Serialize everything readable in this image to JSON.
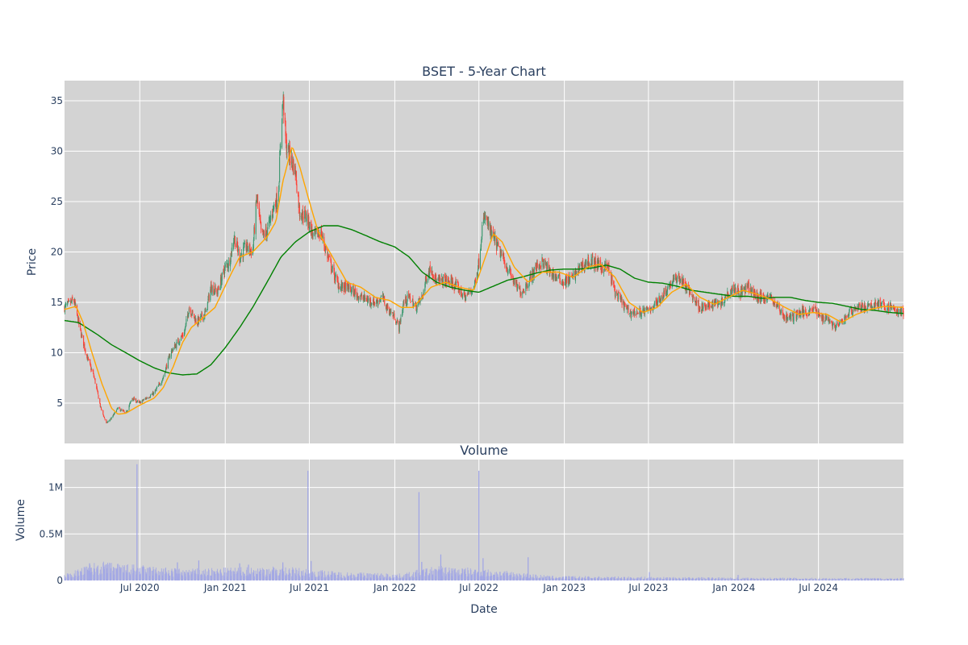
{
  "chart_data": [
    {
      "type": "candlestick",
      "title": "BSET - 5-Year Chart",
      "ylabel": "Price",
      "ylim": [
        1,
        37
      ],
      "y_ticks": [
        5,
        10,
        15,
        20,
        25,
        30,
        35
      ],
      "x_range": [
        "2020-01-21",
        "2024-12-31"
      ],
      "x_tick_dates": [
        "2020-07-01",
        "2021-01-01",
        "2021-07-01",
        "2022-01-01",
        "2022-07-01",
        "2023-01-01",
        "2023-07-01",
        "2024-01-01",
        "2024-07-01"
      ],
      "colors": {
        "up": "#3d9970",
        "down": "#ff4136",
        "ma_short": "#ffa500",
        "ma_long": "#008000",
        "panel_bg": "#d3d3d3",
        "grid": "#ffffff"
      },
      "close_anchors": [
        [
          "2020-01-21",
          14.5
        ],
        [
          "2020-02-10",
          15.2
        ],
        [
          "2020-02-25",
          12.0
        ],
        [
          "2020-03-10",
          9.5
        ],
        [
          "2020-03-25",
          7.5
        ],
        [
          "2020-04-08",
          4.5
        ],
        [
          "2020-04-20",
          3.0
        ],
        [
          "2020-05-01",
          3.5
        ],
        [
          "2020-05-15",
          4.5
        ],
        [
          "2020-06-01",
          4.0
        ],
        [
          "2020-06-15",
          5.5
        ],
        [
          "2020-06-30",
          5.0
        ],
        [
          "2020-07-15",
          5.5
        ],
        [
          "2020-08-01",
          6.0
        ],
        [
          "2020-08-20",
          7.5
        ],
        [
          "2020-09-05",
          10.0
        ],
        [
          "2020-09-20",
          11.0
        ],
        [
          "2020-10-05",
          12.0
        ],
        [
          "2020-10-15",
          14.5
        ],
        [
          "2020-11-01",
          13.0
        ],
        [
          "2020-11-20",
          14.0
        ],
        [
          "2020-12-01",
          16.5
        ],
        [
          "2020-12-15",
          16.0
        ],
        [
          "2021-01-01",
          18.5
        ],
        [
          "2021-01-10",
          19.0
        ],
        [
          "2021-01-20",
          21.5
        ],
        [
          "2021-02-01",
          19.5
        ],
        [
          "2021-02-15",
          20.5
        ],
        [
          "2021-03-01",
          20.0
        ],
        [
          "2021-03-10",
          25.5
        ],
        [
          "2021-03-20",
          21.5
        ],
        [
          "2021-04-01",
          22.0
        ],
        [
          "2021-04-15",
          24.5
        ],
        [
          "2021-04-25",
          25.5
        ],
        [
          "2021-05-03",
          34.0
        ],
        [
          "2021-05-06",
          35.0
        ],
        [
          "2021-05-12",
          30.5
        ],
        [
          "2021-05-20",
          29.5
        ],
        [
          "2021-06-01",
          28.0
        ],
        [
          "2021-06-10",
          24.0
        ],
        [
          "2021-06-25",
          23.5
        ],
        [
          "2021-07-10",
          21.5
        ],
        [
          "2021-07-25",
          22.0
        ],
        [
          "2021-08-10",
          19.5
        ],
        [
          "2021-08-25",
          17.5
        ],
        [
          "2021-09-05",
          16.5
        ],
        [
          "2021-09-20",
          16.5
        ],
        [
          "2021-10-05",
          16.0
        ],
        [
          "2021-10-20",
          15.5
        ],
        [
          "2021-11-05",
          15.2
        ],
        [
          "2021-11-20",
          15.0
        ],
        [
          "2021-12-05",
          15.5
        ],
        [
          "2021-12-15",
          14.5
        ],
        [
          "2022-01-01",
          13.5
        ],
        [
          "2022-01-10",
          12.5
        ],
        [
          "2022-01-20",
          15.0
        ],
        [
          "2022-02-01",
          15.5
        ],
        [
          "2022-02-15",
          14.5
        ],
        [
          "2022-03-01",
          15.5
        ],
        [
          "2022-03-10",
          17.5
        ],
        [
          "2022-03-20",
          18.5
        ],
        [
          "2022-04-01",
          17.0
        ],
        [
          "2022-04-15",
          17.2
        ],
        [
          "2022-05-01",
          17.0
        ],
        [
          "2022-05-15",
          16.5
        ],
        [
          "2022-06-01",
          15.5
        ],
        [
          "2022-06-20",
          16.5
        ],
        [
          "2022-07-01",
          19.0
        ],
        [
          "2022-07-08",
          22.5
        ],
        [
          "2022-07-15",
          23.5
        ],
        [
          "2022-07-25",
          22.0
        ],
        [
          "2022-08-05",
          21.0
        ],
        [
          "2022-08-20",
          19.5
        ],
        [
          "2022-09-05",
          18.0
        ],
        [
          "2022-09-20",
          16.5
        ],
        [
          "2022-10-01",
          16.0
        ],
        [
          "2022-10-15",
          17.0
        ],
        [
          "2022-11-01",
          18.5
        ],
        [
          "2022-11-15",
          19.0
        ],
        [
          "2022-12-01",
          18.0
        ],
        [
          "2022-12-15",
          17.5
        ],
        [
          "2023-01-01",
          17.0
        ],
        [
          "2023-01-20",
          17.5
        ],
        [
          "2023-02-05",
          18.5
        ],
        [
          "2023-02-20",
          19.0
        ],
        [
          "2023-03-05",
          19.0
        ],
        [
          "2023-03-20",
          18.5
        ],
        [
          "2023-04-05",
          18.5
        ],
        [
          "2023-04-20",
          16.0
        ],
        [
          "2023-05-05",
          15.0
        ],
        [
          "2023-05-20",
          14.0
        ],
        [
          "2023-06-10",
          14.0
        ],
        [
          "2023-07-01",
          14.2
        ],
        [
          "2023-07-20",
          15.0
        ],
        [
          "2023-08-05",
          16.0
        ],
        [
          "2023-08-20",
          17.0
        ],
        [
          "2023-09-05",
          17.5
        ],
        [
          "2023-09-20",
          16.5
        ],
        [
          "2023-10-05",
          15.5
        ],
        [
          "2023-10-20",
          14.5
        ],
        [
          "2023-11-05",
          14.5
        ],
        [
          "2023-11-20",
          15.0
        ],
        [
          "2023-12-05",
          15.0
        ],
        [
          "2023-12-20",
          16.0
        ],
        [
          "2024-01-01",
          16.5
        ],
        [
          "2024-01-15",
          16.0
        ],
        [
          "2024-02-01",
          16.5
        ],
        [
          "2024-02-20",
          15.5
        ],
        [
          "2024-03-05",
          15.5
        ],
        [
          "2024-03-20",
          15.5
        ],
        [
          "2024-04-05",
          14.5
        ],
        [
          "2024-04-20",
          13.5
        ],
        [
          "2024-05-05",
          13.5
        ],
        [
          "2024-05-20",
          14.0
        ],
        [
          "2024-06-05",
          14.0
        ],
        [
          "2024-06-20",
          14.5
        ],
        [
          "2024-07-05",
          13.5
        ],
        [
          "2024-07-20",
          13.5
        ],
        [
          "2024-08-05",
          12.5
        ],
        [
          "2024-08-20",
          13.0
        ],
        [
          "2024-09-05",
          14.0
        ],
        [
          "2024-09-20",
          14.5
        ],
        [
          "2024-10-05",
          14.5
        ],
        [
          "2024-10-20",
          14.5
        ],
        [
          "2024-11-05",
          15.0
        ],
        [
          "2024-11-20",
          14.5
        ],
        [
          "2024-12-05",
          14.5
        ],
        [
          "2024-12-20",
          14.0
        ],
        [
          "2024-12-31",
          14.0
        ]
      ],
      "ma_short_anchors": [
        [
          "2020-01-21",
          14.3
        ],
        [
          "2020-02-15",
          14.6
        ],
        [
          "2020-03-01",
          13.0
        ],
        [
          "2020-03-20",
          10.0
        ],
        [
          "2020-04-10",
          7.0
        ],
        [
          "2020-05-01",
          4.5
        ],
        [
          "2020-05-15",
          3.9
        ],
        [
          "2020-06-01",
          4.0
        ],
        [
          "2020-07-01",
          4.8
        ],
        [
          "2020-08-01",
          5.5
        ],
        [
          "2020-08-20",
          6.5
        ],
        [
          "2020-09-10",
          8.5
        ],
        [
          "2020-10-01",
          11.0
        ],
        [
          "2020-10-20",
          12.5
        ],
        [
          "2020-11-15",
          13.5
        ],
        [
          "2020-12-10",
          14.5
        ],
        [
          "2021-01-10",
          17.5
        ],
        [
          "2021-02-01",
          19.5
        ],
        [
          "2021-03-01",
          20.0
        ],
        [
          "2021-04-01",
          21.5
        ],
        [
          "2021-04-20",
          23.0
        ],
        [
          "2021-05-05",
          27.0
        ],
        [
          "2021-05-25",
          30.5
        ],
        [
          "2021-06-10",
          28.5
        ],
        [
          "2021-07-01",
          25.0
        ],
        [
          "2021-07-20",
          22.0
        ],
        [
          "2021-08-20",
          19.5
        ],
        [
          "2021-09-20",
          17.0
        ],
        [
          "2021-10-20",
          16.5
        ],
        [
          "2021-11-20",
          15.5
        ],
        [
          "2021-12-20",
          15.2
        ],
        [
          "2022-01-15",
          14.5
        ],
        [
          "2022-02-10",
          14.5
        ],
        [
          "2022-03-01",
          15.5
        ],
        [
          "2022-03-20",
          16.5
        ],
        [
          "2022-04-20",
          17.0
        ],
        [
          "2022-05-20",
          16.5
        ],
        [
          "2022-06-20",
          16.2
        ],
        [
          "2022-07-15",
          19.5
        ],
        [
          "2022-08-01",
          21.8
        ],
        [
          "2022-08-20",
          21.0
        ],
        [
          "2022-09-15",
          18.5
        ],
        [
          "2022-10-15",
          17.0
        ],
        [
          "2022-11-15",
          18.0
        ],
        [
          "2022-12-20",
          18.0
        ],
        [
          "2023-01-20",
          17.5
        ],
        [
          "2023-02-20",
          18.5
        ],
        [
          "2023-03-20",
          18.8
        ],
        [
          "2023-04-20",
          17.5
        ],
        [
          "2023-05-20",
          15.0
        ],
        [
          "2023-06-20",
          14.0
        ],
        [
          "2023-07-20",
          14.5
        ],
        [
          "2023-08-20",
          16.0
        ],
        [
          "2023-09-20",
          16.8
        ],
        [
          "2023-10-20",
          15.5
        ],
        [
          "2023-11-20",
          14.8
        ],
        [
          "2023-12-20",
          15.5
        ],
        [
          "2024-01-20",
          16.2
        ],
        [
          "2024-02-20",
          15.8
        ],
        [
          "2024-03-20",
          15.3
        ],
        [
          "2024-04-20",
          14.5
        ],
        [
          "2024-05-20",
          13.8
        ],
        [
          "2024-06-20",
          14.0
        ],
        [
          "2024-07-20",
          13.8
        ],
        [
          "2024-08-20",
          13.0
        ],
        [
          "2024-09-20",
          13.8
        ],
        [
          "2024-10-20",
          14.3
        ],
        [
          "2024-11-20",
          14.6
        ],
        [
          "2024-12-31",
          14.5
        ]
      ],
      "ma_long_anchors": [
        [
          "2020-01-21",
          13.2
        ],
        [
          "2020-02-20",
          13.0
        ],
        [
          "2020-04-01",
          11.8
        ],
        [
          "2020-05-01",
          10.8
        ],
        [
          "2020-06-01",
          10.0
        ],
        [
          "2020-07-01",
          9.2
        ],
        [
          "2020-08-01",
          8.5
        ],
        [
          "2020-09-01",
          8.0
        ],
        [
          "2020-10-01",
          7.8
        ],
        [
          "2020-11-01",
          7.9
        ],
        [
          "2020-12-01",
          8.8
        ],
        [
          "2021-01-01",
          10.5
        ],
        [
          "2021-02-01",
          12.5
        ],
        [
          "2021-03-01",
          14.5
        ],
        [
          "2021-04-01",
          17.0
        ],
        [
          "2021-05-01",
          19.5
        ],
        [
          "2021-06-01",
          21.0
        ],
        [
          "2021-07-01",
          22.0
        ],
        [
          "2021-08-01",
          22.6
        ],
        [
          "2021-09-01",
          22.6
        ],
        [
          "2021-10-01",
          22.2
        ],
        [
          "2021-11-01",
          21.6
        ],
        [
          "2021-12-01",
          21.0
        ],
        [
          "2022-01-01",
          20.5
        ],
        [
          "2022-02-01",
          19.5
        ],
        [
          "2022-03-01",
          18.0
        ],
        [
          "2022-04-01",
          17.0
        ],
        [
          "2022-05-01",
          16.5
        ],
        [
          "2022-06-01",
          16.2
        ],
        [
          "2022-07-01",
          16.0
        ],
        [
          "2022-08-01",
          16.6
        ],
        [
          "2022-09-01",
          17.2
        ],
        [
          "2022-10-01",
          17.5
        ],
        [
          "2022-11-01",
          17.9
        ],
        [
          "2022-12-01",
          18.2
        ],
        [
          "2023-01-01",
          18.3
        ],
        [
          "2023-02-01",
          18.3
        ],
        [
          "2023-03-01",
          18.4
        ],
        [
          "2023-04-01",
          18.7
        ],
        [
          "2023-05-01",
          18.3
        ],
        [
          "2023-06-01",
          17.4
        ],
        [
          "2023-07-01",
          17.0
        ],
        [
          "2023-08-01",
          16.9
        ],
        [
          "2023-09-01",
          16.6
        ],
        [
          "2023-10-01",
          16.2
        ],
        [
          "2023-11-01",
          16.0
        ],
        [
          "2023-12-01",
          15.8
        ],
        [
          "2024-01-01",
          15.6
        ],
        [
          "2024-02-01",
          15.6
        ],
        [
          "2024-03-01",
          15.4
        ],
        [
          "2024-04-01",
          15.5
        ],
        [
          "2024-05-01",
          15.5
        ],
        [
          "2024-06-01",
          15.2
        ],
        [
          "2024-07-01",
          15.0
        ],
        [
          "2024-08-01",
          14.9
        ],
        [
          "2024-09-01",
          14.6
        ],
        [
          "2024-10-01",
          14.3
        ],
        [
          "2024-11-01",
          14.2
        ],
        [
          "2024-12-01",
          14.0
        ],
        [
          "2024-12-31",
          13.9
        ]
      ]
    },
    {
      "type": "bar",
      "title": "Volume",
      "xlabel": "Date",
      "ylabel": "Volume",
      "ylim": [
        0,
        1300000
      ],
      "y_ticks": [
        {
          "value": 0,
          "label": "0"
        },
        {
          "value": 500000,
          "label": "0.5M"
        },
        {
          "value": 1000000,
          "label": "1M"
        }
      ],
      "x_tick_labels": [
        "Jul 2020",
        "Jan 2021",
        "Jul 2021",
        "Jan 2022",
        "Jul 2022",
        "Jan 2023",
        "Jul 2023",
        "Jan 2024",
        "Jul 2024"
      ],
      "color": "#9fa4e6",
      "baseline_volume": [
        [
          "2020-01-21",
          45000
        ],
        [
          "2020-04-01",
          140000
        ],
        [
          "2020-10-01",
          85000
        ],
        [
          "2021-05-01",
          105000
        ],
        [
          "2021-09-01",
          65000
        ],
        [
          "2022-01-15",
          50000
        ],
        [
          "2022-04-01",
          110000
        ],
        [
          "2022-08-01",
          80000
        ],
        [
          "2022-12-01",
          35000
        ],
        [
          "2023-06-01",
          28000
        ],
        [
          "2024-01-01",
          22000
        ],
        [
          "2024-12-31",
          18000
        ]
      ],
      "spikes": [
        [
          "2020-03-15",
          185000
        ],
        [
          "2020-04-20",
          175000
        ],
        [
          "2020-06-25",
          1250000
        ],
        [
          "2020-09-20",
          195000
        ],
        [
          "2020-11-05",
          215000
        ],
        [
          "2021-02-01",
          185000
        ],
        [
          "2021-02-20",
          170000
        ],
        [
          "2021-05-05",
          195000
        ],
        [
          "2021-06-28",
          1180000
        ],
        [
          "2021-07-05",
          210000
        ],
        [
          "2022-02-22",
          950000
        ],
        [
          "2022-02-28",
          200000
        ],
        [
          "2022-04-10",
          280000
        ],
        [
          "2022-07-01",
          1180000
        ],
        [
          "2022-07-10",
          240000
        ],
        [
          "2022-10-15",
          250000
        ],
        [
          "2023-07-03",
          90000
        ],
        [
          "2024-01-10",
          60000
        ]
      ]
    }
  ]
}
